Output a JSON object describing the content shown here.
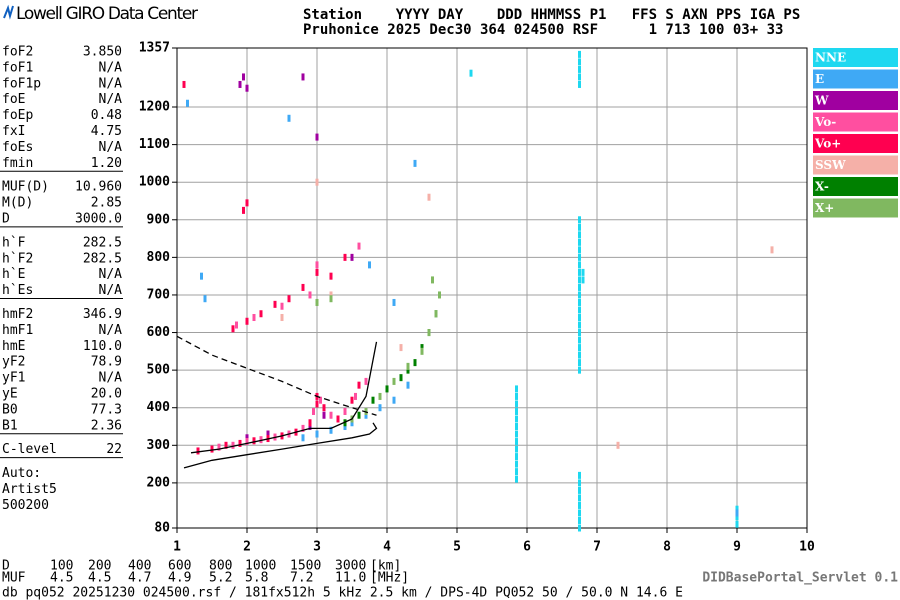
{
  "header": {
    "logo": "Lowell GIRO Data Center",
    "line1": "Station    YYYY DAY    DDD HHMMSS P1   FFS S AXN PPS IGA PS",
    "line2": "Pruhonice 2025 Dec30 364 024500 RSF      1 713 100 03+ 33"
  },
  "parameters": [
    [
      {
        "name": "foF2",
        "value": "3.850"
      },
      {
        "name": "foF1",
        "value": "N/A"
      },
      {
        "name": "foF1p",
        "value": "N/A"
      },
      {
        "name": "foE",
        "value": "N/A"
      },
      {
        "name": "foEp",
        "value": "0.48"
      },
      {
        "name": "fxI",
        "value": "4.75"
      },
      {
        "name": "foEs",
        "value": "N/A"
      },
      {
        "name": "fmin",
        "value": "1.20"
      }
    ],
    [
      {
        "name": "MUF(D)",
        "value": "10.960"
      },
      {
        "name": "M(D)",
        "value": "2.85"
      },
      {
        "name": "D",
        "value": "3000.0"
      }
    ],
    [
      {
        "name": "h`F",
        "value": "282.5"
      },
      {
        "name": "h`F2",
        "value": "282.5"
      },
      {
        "name": "h`E",
        "value": "N/A"
      },
      {
        "name": "h`Es",
        "value": "N/A"
      }
    ],
    [
      {
        "name": "hmF2",
        "value": "346.9"
      },
      {
        "name": "hmF1",
        "value": "N/A"
      },
      {
        "name": "hmE",
        "value": "110.0"
      },
      {
        "name": "yF2",
        "value": "78.9"
      },
      {
        "name": "yF1",
        "value": "N/A"
      },
      {
        "name": "yE",
        "value": "20.0"
      },
      {
        "name": "B0",
        "value": "77.3"
      },
      {
        "name": "B1",
        "value": "2.36"
      }
    ],
    [
      {
        "name": "C-level",
        "value": "22"
      }
    ]
  ],
  "auto": [
    "Auto:",
    "Artist5",
    "500200"
  ],
  "chart_data": {
    "type": "scatter",
    "xlim": [
      1,
      10
    ],
    "xticks": [
      1,
      2,
      3,
      4,
      5,
      6,
      7,
      8,
      9,
      10
    ],
    "ylim": [
      80,
      1357
    ],
    "yticks": [
      80,
      200,
      300,
      400,
      500,
      600,
      700,
      800,
      900,
      1000,
      1100,
      1200,
      1357
    ],
    "grid": true,
    "legend": "right",
    "series": [
      {
        "name": "NNE",
        "color": "#1ed8f0",
        "x": [
          6.75,
          6.75,
          6.75,
          6.75,
          6.75,
          6.75,
          6.75,
          6.75,
          6.75,
          6.75,
          6.75,
          6.75,
          6.75,
          6.75,
          6.75,
          6.75,
          6.75,
          6.75,
          6.75,
          6.75,
          6.75,
          6.8,
          6.8,
          6.75,
          6.75,
          6.75,
          6.75,
          6.75,
          5.85,
          5.85,
          5.85,
          5.85,
          5.85,
          5.85,
          5.85,
          5.85,
          5.85,
          5.85,
          5.85,
          5.85,
          5.85,
          6.75,
          6.75,
          6.75,
          6.75,
          6.75,
          6.75,
          6.75,
          6.75,
          9.0,
          9.0,
          9.0,
          5.2
        ],
        "values": [
          500,
          520,
          540,
          560,
          580,
          600,
          620,
          640,
          660,
          680,
          700,
          720,
          740,
          760,
          780,
          800,
          820,
          840,
          860,
          880,
          900,
          740,
          760,
          1260,
          1280,
          1300,
          1320,
          1340,
          210,
          230,
          250,
          270,
          290,
          310,
          330,
          350,
          370,
          390,
          410,
          430,
          450,
          80,
          100,
          120,
          140,
          160,
          180,
          200,
          220,
          90,
          110,
          130,
          1290
        ]
      },
      {
        "name": "E",
        "color": "#3fa9f5",
        "x": [
          2.8,
          3.0,
          3.2,
          3.4,
          3.5,
          3.7,
          3.9,
          4.1,
          4.3,
          1.15,
          2.6,
          4.4,
          1.35,
          1.4,
          3.75,
          4.1,
          9.0
        ],
        "values": [
          320,
          330,
          340,
          350,
          360,
          380,
          400,
          420,
          460,
          1210,
          1170,
          1050,
          750,
          690,
          780,
          680,
          120
        ]
      },
      {
        "name": "W",
        "color": "#a000a0",
        "x": [
          1.9,
          1.95,
          2.0,
          2.8,
          3.0,
          2.0,
          2.3,
          2.9,
          3.1,
          3.5
        ],
        "values": [
          1260,
          1280,
          1250,
          1280,
          1120,
          320,
          330,
          350,
          380,
          800
        ]
      },
      {
        "name": "Vo-",
        "color": "#ff4fa0",
        "x": [
          1.6,
          1.8,
          2.0,
          2.2,
          2.4,
          2.6,
          2.8,
          2.95,
          3.05,
          3.2,
          3.4,
          3.55,
          3.7,
          1.85,
          2.1,
          2.5,
          2.9,
          3.0,
          3.6
        ],
        "values": [
          295,
          300,
          310,
          315,
          322,
          330,
          345,
          390,
          420,
          380,
          390,
          430,
          470,
          620,
          640,
          670,
          700,
          780,
          830
        ]
      },
      {
        "name": "Vo+",
        "color": "#ff0050",
        "x": [
          1.3,
          1.5,
          1.7,
          1.9,
          2.1,
          2.3,
          2.5,
          2.7,
          2.9,
          3.0,
          3.0,
          3.1,
          3.3,
          3.5,
          3.6,
          1.8,
          2.0,
          2.2,
          2.4,
          2.6,
          2.8,
          3.0,
          3.2,
          3.4,
          1.95,
          2.0,
          1.1
        ],
        "values": [
          285,
          290,
          300,
          305,
          312,
          318,
          325,
          335,
          360,
          410,
          430,
          400,
          370,
          420,
          460,
          610,
          630,
          650,
          675,
          690,
          720,
          760,
          750,
          800,
          925,
          945,
          1260
        ]
      },
      {
        "name": "SSW",
        "color": "#f5b0a8",
        "x": [
          2.5,
          3.2,
          4.2,
          7.3,
          9.5,
          3.0,
          4.6
        ],
        "values": [
          640,
          700,
          560,
          300,
          820,
          1000,
          960
        ]
      },
      {
        "name": "X-",
        "color": "#008000",
        "x": [
          3.4,
          3.6,
          3.8,
          4.0,
          4.2,
          4.4,
          4.5,
          4.6,
          4.3,
          4.7
        ],
        "values": [
          360,
          380,
          420,
          450,
          480,
          520,
          560,
          600,
          500,
          650
        ]
      },
      {
        "name": "X+",
        "color": "#80b860",
        "x": [
          3.5,
          3.7,
          3.9,
          4.1,
          4.3,
          4.5,
          4.6,
          4.7,
          4.75,
          4.65,
          3.0,
          3.2
        ],
        "values": [
          370,
          390,
          430,
          470,
          510,
          550,
          600,
          650,
          700,
          740,
          680,
          690
        ]
      }
    ],
    "lines": [
      {
        "color": "#000000",
        "dashed": false,
        "x": [
          1.1,
          1.5,
          2.0,
          2.5,
          3.0,
          3.5,
          3.75,
          3.85,
          3.8
        ],
        "values": [
          240,
          260,
          275,
          290,
          305,
          320,
          330,
          345,
          360
        ]
      },
      {
        "color": "#000000",
        "dashed": false,
        "x": [
          1.2,
          1.6,
          2.0,
          2.5,
          2.9,
          3.2,
          3.5,
          3.7,
          3.85
        ],
        "values": [
          280,
          290,
          305,
          325,
          345,
          345,
          370,
          430,
          575
        ]
      },
      {
        "color": "#000000",
        "dashed": true,
        "x": [
          1.0,
          1.5,
          2.0,
          2.5,
          3.0,
          3.5,
          3.85
        ],
        "values": [
          590,
          540,
          505,
          470,
          430,
          400,
          380
        ]
      }
    ]
  },
  "muf_table": [
    [
      "D",
      "100",
      "200",
      "400",
      "600",
      "800",
      "1000",
      "1500",
      "3000",
      "[km]"
    ],
    [
      "MUF",
      "4.5",
      "4.5",
      "4.7",
      "4.9",
      "5.2",
      "5.8",
      "7.2",
      "11.0",
      "[MHz]"
    ]
  ],
  "footer": {
    "servlet": "DIDBasePortal_Servlet 0.1",
    "info": "db pq052 20251230 024500.rsf / 181fx512h 5 kHz 2.5 km / DPS-4D PQ052 50 / 50.0 N 14.6 E"
  }
}
